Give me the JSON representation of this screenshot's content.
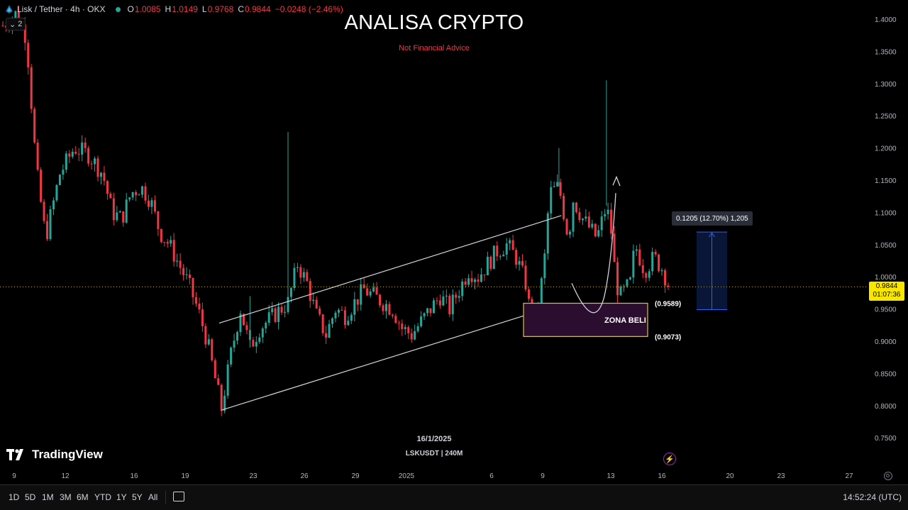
{
  "header": {
    "symbol": "Lisk / Tether · 4h · OKX",
    "open_label": "O",
    "open": "1.0085",
    "high_label": "H",
    "high": "1.0149",
    "low_label": "L",
    "low": "0.9768",
    "close_label": "C",
    "close": "0.9844",
    "change": "−0.0248 (−2.46%)",
    "indicator_count": "2"
  },
  "overlay": {
    "title": "ANALISA CRYPTO",
    "subtitle": "Not Financial Advice",
    "date_note": "16/1/2025",
    "symbol_note": "LSKUSDT | 240M",
    "zone_label": "ZONA BELI",
    "zone_top_label": "(0.9589)",
    "zone_bottom_label": "(0.9073)",
    "measure_label": "0.1205 (12.70%) 1,205"
  },
  "current_price": {
    "price": "0.9844",
    "countdown": "01:07:36"
  },
  "branding": {
    "name": "TradingView"
  },
  "toolbar": {
    "timeframes": [
      "1D",
      "5D",
      "1M",
      "3M",
      "6M",
      "YTD",
      "1Y",
      "5Y",
      "All"
    ],
    "clock": "14:52:24 (UTC)"
  },
  "colors": {
    "up": "#26a69a",
    "down": "#f23645",
    "zone_fill": "#2b0d2f",
    "zone_border": "#d4c44a",
    "measure": "#2962ff"
  },
  "chart_data": {
    "type": "candlestick",
    "y_axis": {
      "min": 0.72,
      "max": 1.42,
      "ticks": [
        "1.4000",
        "1.3500",
        "1.3000",
        "1.2500",
        "1.2000",
        "1.1500",
        "1.1000",
        "1.0500",
        "1.0000",
        "0.9500",
        "0.9000",
        "0.8500",
        "0.8000",
        "0.7500"
      ]
    },
    "x_axis": {
      "tick_labels": [
        "9",
        "12",
        "16",
        "19",
        "23",
        "26",
        "29",
        "2025",
        "6",
        "9",
        "13",
        "16",
        "20",
        "23",
        "27"
      ]
    },
    "anchors": [
      {
        "t": 0,
        "p": 1.39
      },
      {
        "t": 3,
        "p": 1.41
      },
      {
        "t": 5,
        "p": 1.37
      },
      {
        "t": 7,
        "p": 1.17
      },
      {
        "t": 9,
        "p": 1.06
      },
      {
        "t": 12,
        "p": 1.16
      },
      {
        "t": 15,
        "p": 1.2
      },
      {
        "t": 18,
        "p": 1.19
      },
      {
        "t": 21,
        "p": 1.16
      },
      {
        "t": 23,
        "p": 1.1
      },
      {
        "t": 25,
        "p": 1.09
      },
      {
        "t": 27,
        "p": 1.13
      },
      {
        "t": 29,
        "p": 1.14
      },
      {
        "t": 31,
        "p": 1.12
      },
      {
        "t": 33,
        "p": 1.07
      },
      {
        "t": 35,
        "p": 1.05
      },
      {
        "t": 37,
        "p": 1.02
      },
      {
        "t": 39,
        "p": 0.99
      },
      {
        "t": 41,
        "p": 0.95
      },
      {
        "t": 43,
        "p": 0.9
      },
      {
        "t": 45,
        "p": 0.83
      },
      {
        "t": 46,
        "p": 0.795
      },
      {
        "t": 48,
        "p": 0.88
      },
      {
        "t": 50,
        "p": 0.95
      },
      {
        "t": 52,
        "p": 0.89
      },
      {
        "t": 54,
        "p": 0.92
      },
      {
        "t": 57,
        "p": 0.94
      },
      {
        "t": 60,
        "p": 0.96
      },
      {
        "t": 62,
        "p": 1.02
      },
      {
        "t": 64,
        "p": 0.99
      },
      {
        "t": 66,
        "p": 0.94
      },
      {
        "t": 68,
        "p": 0.91
      },
      {
        "t": 70,
        "p": 0.95
      },
      {
        "t": 72,
        "p": 0.94
      },
      {
        "t": 74,
        "p": 0.96
      },
      {
        "t": 76,
        "p": 0.98
      },
      {
        "t": 78,
        "p": 0.97
      },
      {
        "t": 80,
        "p": 0.96
      },
      {
        "t": 82,
        "p": 0.95
      },
      {
        "t": 84,
        "p": 0.92
      },
      {
        "t": 86,
        "p": 0.91
      },
      {
        "t": 88,
        "p": 0.93
      },
      {
        "t": 90,
        "p": 0.95
      },
      {
        "t": 92,
        "p": 0.97
      },
      {
        "t": 94,
        "p": 0.95
      },
      {
        "t": 96,
        "p": 0.98
      },
      {
        "t": 98,
        "p": 1.01
      },
      {
        "t": 100,
        "p": 1.0
      },
      {
        "t": 102,
        "p": 1.02
      },
      {
        "t": 104,
        "p": 1.04
      },
      {
        "t": 106,
        "p": 1.05
      },
      {
        "t": 108,
        "p": 1.03
      },
      {
        "t": 110,
        "p": 0.99
      },
      {
        "t": 111,
        "p": 0.94
      },
      {
        "t": 112,
        "p": 0.93
      },
      {
        "t": 113,
        "p": 0.97
      },
      {
        "t": 114,
        "p": 1.03
      },
      {
        "t": 115,
        "p": 1.13
      },
      {
        "t": 117,
        "p": 1.14
      },
      {
        "t": 118,
        "p": 1.1
      },
      {
        "t": 119,
        "p": 1.06
      },
      {
        "t": 120,
        "p": 1.12
      },
      {
        "t": 122,
        "p": 1.09
      },
      {
        "t": 124,
        "p": 1.07
      },
      {
        "t": 125,
        "p": 1.06
      },
      {
        "t": 127,
        "p": 1.11
      },
      {
        "t": 128,
        "p": 1.07
      },
      {
        "t": 129,
        "p": 0.99
      },
      {
        "t": 130,
        "p": 0.97
      },
      {
        "t": 132,
        "p": 0.99
      },
      {
        "t": 133,
        "p": 1.05
      },
      {
        "t": 134,
        "p": 1.03
      },
      {
        "t": 135,
        "p": 1.01
      },
      {
        "t": 137,
        "p": 1.03
      },
      {
        "t": 139,
        "p": 1.01
      },
      {
        "t": 140,
        "p": 0.984
      }
    ],
    "spikes": [
      {
        "t": 60,
        "high": 1.225
      },
      {
        "t": 117,
        "high": 1.2
      },
      {
        "t": 127,
        "high": 1.305
      },
      {
        "t": 52,
        "high": 0.97
      }
    ],
    "current_price": 0.9844,
    "zone": {
      "label": "ZONA BELI",
      "top": 0.9589,
      "bottom": 0.9073
    },
    "measure": {
      "from": 0.949,
      "to": 1.0695,
      "change": "0.1205 (12.70%)"
    }
  }
}
